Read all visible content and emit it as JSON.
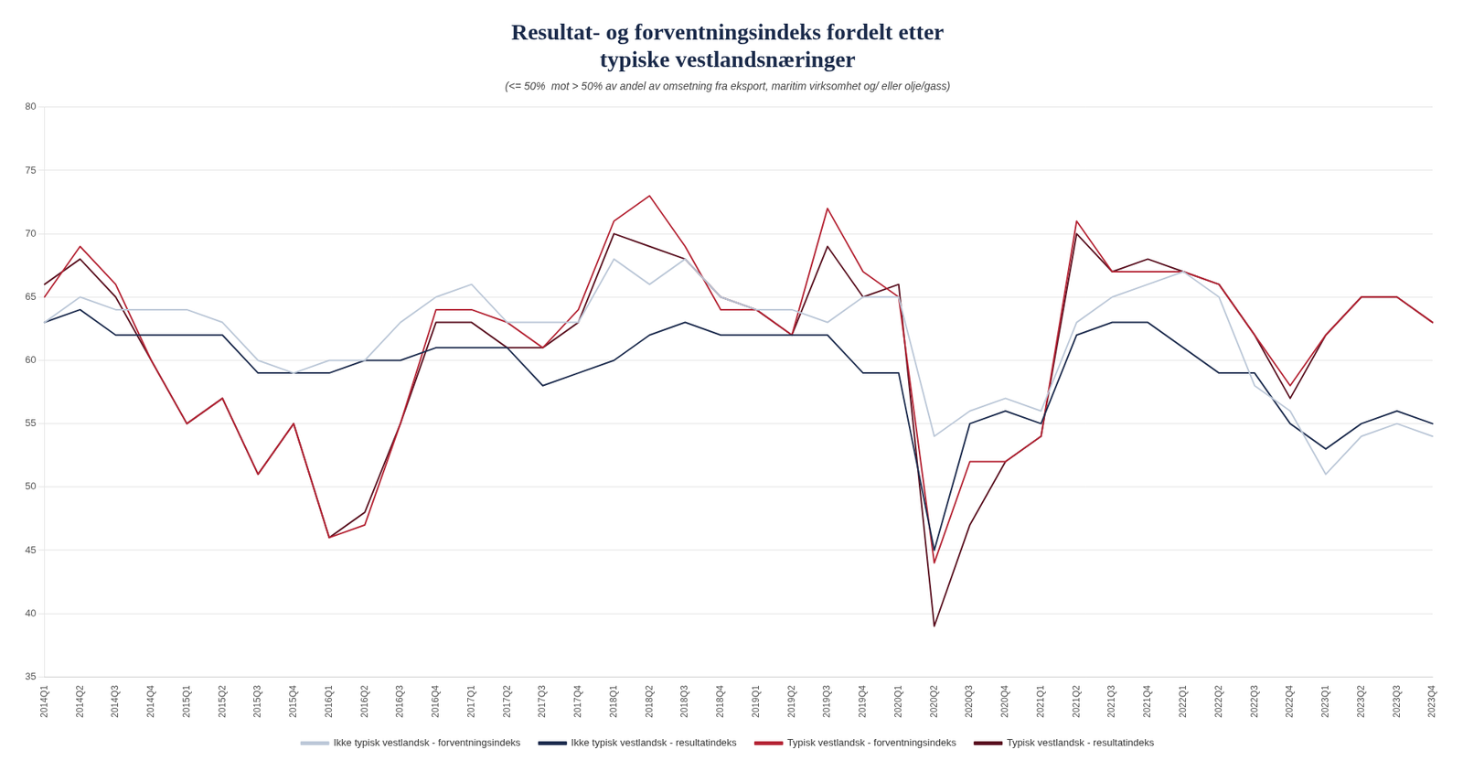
{
  "chart_data": {
    "type": "line",
    "title": "Resultat- og forventningsindeks fordelt etter\ntypiske vestlandsnæringer",
    "subtitle": "(<= 50%  mot > 50% av andel av omsetning fra eksport, maritim virksomhet og/ eller olje/gass)",
    "categories": [
      "2014Q1",
      "2014Q2",
      "2014Q3",
      "2014Q4",
      "2015Q1",
      "2015Q2",
      "2015Q3",
      "2015Q4",
      "2016Q1",
      "2016Q2",
      "2016Q3",
      "2016Q4",
      "2017Q1",
      "2017Q2",
      "2017Q3",
      "2017Q4",
      "2018Q1",
      "2018Q2",
      "2018Q3",
      "2018Q4",
      "2019Q1",
      "2019Q2",
      "2019Q3",
      "2019Q4",
      "2020Q1",
      "2020Q2",
      "2020Q3",
      "2020Q4",
      "2021Q1",
      "2021Q2",
      "2021Q3",
      "2021Q4",
      "2022Q1",
      "2022Q2",
      "2022Q3",
      "2022Q4",
      "2023Q1",
      "2023Q2",
      "2023Q3",
      "2023Q4"
    ],
    "series": [
      {
        "name": "Ikke typisk vestlandsk - forventningsindeks",
        "color": "#bcc8d8",
        "values": [
          63,
          65,
          64,
          64,
          64,
          63,
          60,
          59,
          60,
          60,
          63,
          65,
          66,
          63,
          63,
          63,
          68,
          66,
          68,
          65,
          64,
          64,
          63,
          65,
          65,
          54,
          56,
          57,
          56,
          63,
          65,
          66,
          67,
          65,
          58,
          56,
          51,
          54,
          55,
          54
        ]
      },
      {
        "name": "Ikke typisk vestlandsk - resultatindeks",
        "color": "#1e2d4f",
        "values": [
          63,
          64,
          62,
          62,
          62,
          62,
          59,
          59,
          59,
          60,
          60,
          61,
          61,
          61,
          58,
          59,
          60,
          62,
          63,
          62,
          62,
          62,
          62,
          59,
          59,
          45,
          55,
          56,
          55,
          62,
          63,
          63,
          61,
          59,
          59,
          55,
          53,
          55,
          56,
          55
        ]
      },
      {
        "name": "Typisk vestlandsk - forventningsindeks",
        "color": "#b52535",
        "values": [
          65,
          69,
          66,
          60,
          55,
          57,
          51,
          55,
          46,
          47,
          55,
          64,
          64,
          63,
          61,
          64,
          71,
          73,
          69,
          64,
          64,
          62,
          72,
          67,
          65,
          44,
          52,
          52,
          54,
          71,
          67,
          67,
          67,
          66,
          62,
          58,
          62,
          65,
          65,
          63
        ]
      },
      {
        "name": "Typisk vestlandsk - resultatindeks",
        "color": "#5a1020",
        "values": [
          66,
          68,
          65,
          60,
          55,
          57,
          51,
          55,
          46,
          48,
          55,
          63,
          63,
          61,
          61,
          63,
          70,
          69,
          68,
          65,
          64,
          62,
          69,
          65,
          66,
          39,
          47,
          52,
          54,
          70,
          67,
          68,
          67,
          66,
          62,
          57,
          62,
          65,
          65,
          63
        ]
      }
    ],
    "ylim": [
      35,
      80
    ],
    "yticks": [
      35,
      40,
      45,
      50,
      55,
      60,
      65,
      70,
      75,
      80
    ],
    "grid": true,
    "legend": "bottom"
  }
}
